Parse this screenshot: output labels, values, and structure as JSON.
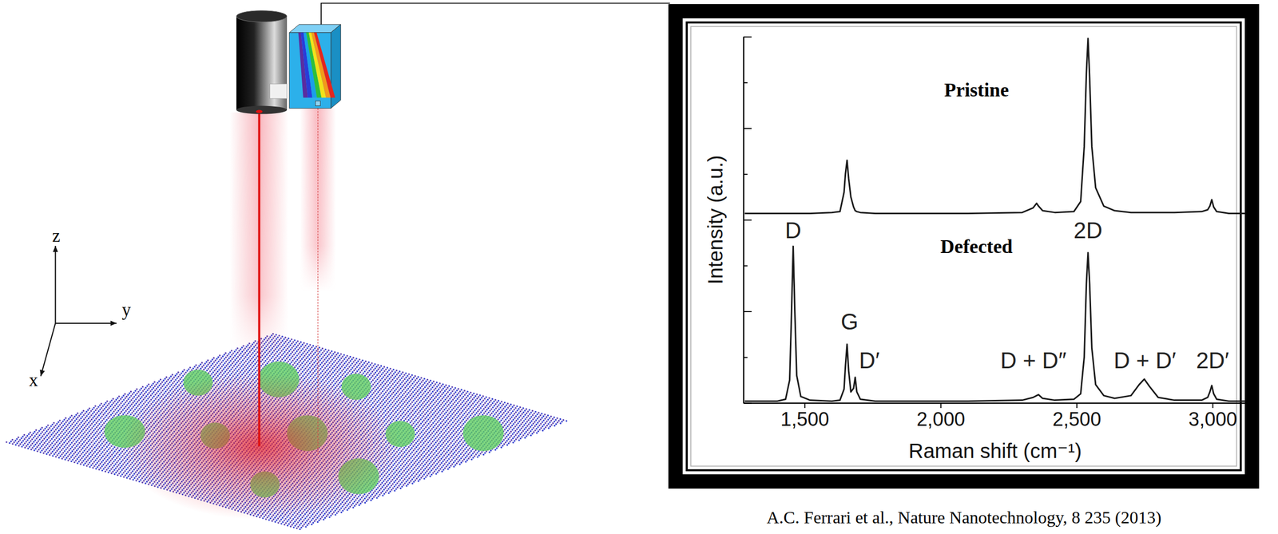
{
  "chart_data": {
    "type": "line",
    "xlabel": "Raman shift (cm⁻¹)",
    "ylabel": "Intensity (a.u.)",
    "xlim": [
      1275,
      3126
    ],
    "ylim": [
      0,
      4
    ],
    "xticks": [
      {
        "value": 1500,
        "label": "1,500"
      },
      {
        "value": 2000,
        "label": "2,000"
      },
      {
        "value": 2500,
        "label": "2,500"
      },
      {
        "value": 3000,
        "label": "3,000"
      }
    ],
    "yticks": [
      0,
      0.5,
      1,
      1.5,
      2,
      2.5,
      3,
      3.5,
      4
    ],
    "tick_labels": "x",
    "grid": false,
    "x": [
      1280,
      1400,
      1430,
      1445,
      1452,
      1458,
      1464,
      1471,
      1486,
      1520,
      1600,
      1630,
      1645,
      1650,
      1656,
      1662,
      1670,
      1680,
      1686,
      1692,
      1705,
      1760,
      1900,
      2100,
      2300,
      2340,
      2353,
      2360,
      2375,
      2420,
      2490,
      2515,
      2528,
      2536,
      2542,
      2548,
      2556,
      2570,
      2600,
      2640,
      2700,
      2730,
      2749,
      2768,
      2800,
      2860,
      2960,
      2982,
      2990,
      2997,
      3004,
      3015,
      3060,
      3120
    ],
    "series": [
      {
        "name": "Pristine",
        "color": "#1a1a1a",
        "label_x": 2132,
        "label_y": 3.42,
        "values": [
          2.07,
          2.07,
          2.07,
          2.07,
          2.07,
          2.07,
          2.07,
          2.07,
          2.07,
          2.07,
          2.08,
          2.09,
          2.3,
          2.5,
          2.65,
          2.45,
          2.25,
          2.14,
          2.1,
          2.09,
          2.08,
          2.07,
          2.07,
          2.07,
          2.08,
          2.13,
          2.18,
          2.15,
          2.1,
          2.08,
          2.09,
          2.2,
          2.8,
          3.6,
          3.98,
          3.55,
          2.8,
          2.35,
          2.15,
          2.1,
          2.08,
          2.08,
          2.08,
          2.08,
          2.08,
          2.08,
          2.09,
          2.11,
          2.15,
          2.22,
          2.14,
          2.09,
          2.07,
          2.07
        ]
      },
      {
        "name": "Defected",
        "color": "#1a1a1a",
        "label_x": 2132,
        "label_y": 1.71,
        "values": [
          0.02,
          0.02,
          0.04,
          0.25,
          1.0,
          1.71,
          1.0,
          0.3,
          0.07,
          0.03,
          0.02,
          0.03,
          0.15,
          0.4,
          0.64,
          0.35,
          0.12,
          0.16,
          0.28,
          0.12,
          0.04,
          0.02,
          0.02,
          0.02,
          0.03,
          0.06,
          0.08,
          0.09,
          0.05,
          0.03,
          0.04,
          0.1,
          0.5,
          1.3,
          1.64,
          1.3,
          0.6,
          0.2,
          0.08,
          0.05,
          0.08,
          0.2,
          0.26,
          0.18,
          0.06,
          0.03,
          0.03,
          0.06,
          0.12,
          0.19,
          0.1,
          0.04,
          0.02,
          0.02
        ]
      }
    ],
    "annotations": [
      {
        "text": "D",
        "x": 1458,
        "y": 1.8
      },
      {
        "text": "G",
        "x": 1665,
        "y": 0.8
      },
      {
        "text": "D′",
        "x": 1738,
        "y": 0.38
      },
      {
        "text": "D + D″",
        "x": 2341,
        "y": 0.38
      },
      {
        "text": "2D",
        "x": 2542,
        "y": 1.8
      },
      {
        "text": "D + D′",
        "x": 2751,
        "y": 0.38
      },
      {
        "text": "2D′",
        "x": 3000,
        "y": 0.38
      }
    ]
  },
  "diagram": {
    "axis_labels": {
      "x": "x",
      "y": "y",
      "z": "z"
    }
  },
  "source": "A.C. Ferrari et al., Nature Nanotechnology, 8 235 (2013)"
}
